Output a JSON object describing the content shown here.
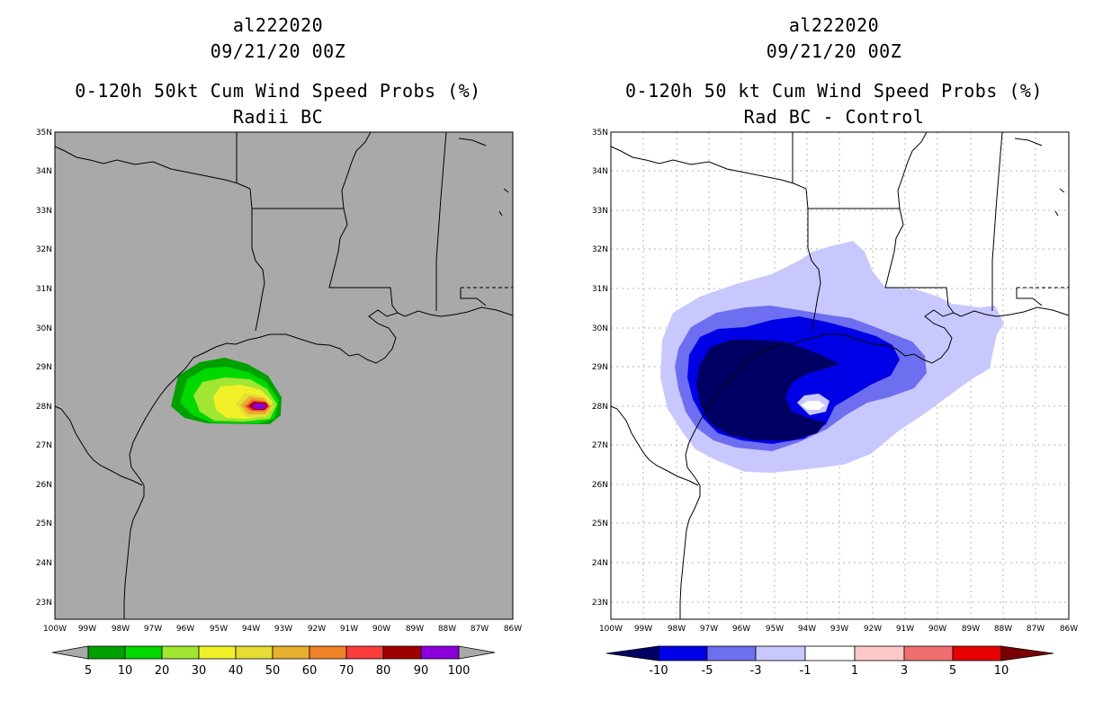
{
  "left_panel": {
    "storm_id": "al222020",
    "datetime": "09/21/20 00Z",
    "title": "0-120h 50kt Cum Wind Speed Probs (%)",
    "subtitle": "Radii BC",
    "background_color": "#a9a9a9",
    "colorbar": {
      "labels": [
        "5",
        "10",
        "20",
        "30",
        "40",
        "50",
        "60",
        "70",
        "80",
        "90",
        "100"
      ],
      "colors": [
        "#a9a9a9",
        "#00a000",
        "#00d800",
        "#a0e632",
        "#f0f028",
        "#e6dc32",
        "#e6af2d",
        "#f08228",
        "#fa3c3c",
        "#a00000",
        "#8c00dc",
        "#a9a9a9"
      ]
    }
  },
  "right_panel": {
    "storm_id": "al222020",
    "datetime": "09/21/20 00Z",
    "title": "0-120h 50 kt Cum Wind Speed Probs (%)",
    "subtitle": "Rad BC - Control",
    "background_color": "#ffffff",
    "colorbar": {
      "labels": [
        "-10",
        "-5",
        "-3",
        "-1",
        "1",
        "3",
        "5",
        "10"
      ],
      "colors": [
        "#000064",
        "#0000e6",
        "#6e6ef0",
        "#c8c8ff",
        "#ffffff",
        "#ffc8c8",
        "#f06e6e",
        "#e60000",
        "#780000"
      ]
    }
  },
  "axes": {
    "lat_labels": [
      "35N",
      "34N",
      "33N",
      "32N",
      "31N",
      "30N",
      "29N",
      "28N",
      "27N",
      "26N",
      "25N",
      "24N",
      "23N"
    ],
    "lon_labels": [
      "100W",
      "99W",
      "98W",
      "97W",
      "96W",
      "95W",
      "94W",
      "93W",
      "92W",
      "91W",
      "90W",
      "89W",
      "88W",
      "87W",
      "86W"
    ]
  },
  "map_features": {
    "line_color": "#000000",
    "grid_color": "#b4b4b4"
  }
}
